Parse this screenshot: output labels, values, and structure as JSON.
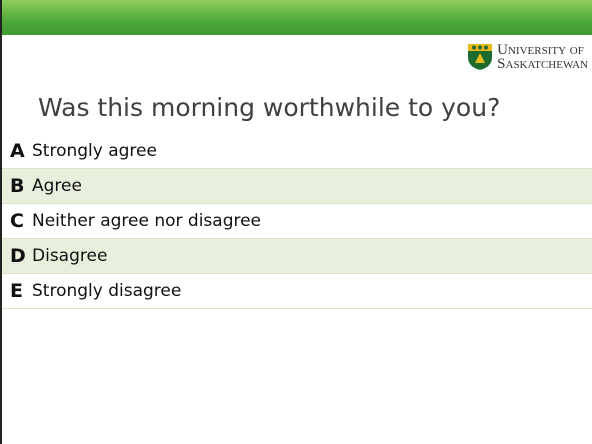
{
  "logo": {
    "line1": "University of",
    "line2": "Saskatchewan"
  },
  "question": "Was this morning worthwhile to you?",
  "options": [
    {
      "letter": "A",
      "text": "Strongly agree"
    },
    {
      "letter": "B",
      "text": "Agree"
    },
    {
      "letter": "C",
      "text": "Neither agree nor disagree"
    },
    {
      "letter": "D",
      "text": "Disagree"
    },
    {
      "letter": "E",
      "text": "Strongly disagree"
    }
  ]
}
